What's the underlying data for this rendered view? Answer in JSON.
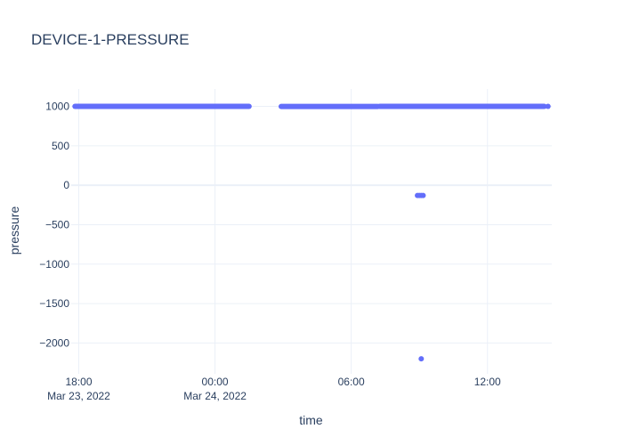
{
  "chart_data": {
    "type": "scatter",
    "title": "DEVICE-1-PRESSURE",
    "xlabel": "time",
    "ylabel": "pressure",
    "grid": true,
    "marker_color": "#636efa",
    "x_range": [
      "2022-03-23T17:40",
      "2022-03-24T14:50"
    ],
    "y_range": [
      -2390,
      1220
    ],
    "x_ticks": [
      {
        "value": "2022-03-23T18:00",
        "label": "18:00",
        "sublabel": "Mar 23, 2022"
      },
      {
        "value": "2022-03-24T00:00",
        "label": "00:00",
        "sublabel": "Mar 24, 2022"
      },
      {
        "value": "2022-03-24T06:00",
        "label": "06:00",
        "sublabel": ""
      },
      {
        "value": "2022-03-24T12:00",
        "label": "12:00",
        "sublabel": ""
      }
    ],
    "y_ticks": [
      {
        "value": 1000,
        "label": "1000"
      },
      {
        "value": 500,
        "label": "500"
      },
      {
        "value": 0,
        "label": "0"
      },
      {
        "value": -500,
        "label": "−500"
      },
      {
        "value": -1000,
        "label": "−1000"
      },
      {
        "value": -1500,
        "label": "−1500"
      },
      {
        "value": -2000,
        "label": "−2000"
      }
    ],
    "series": [
      {
        "segments": [
          {
            "start": "2022-03-23T17:50",
            "end": "2022-03-24T01:30",
            "value": 1000
          },
          {
            "start": "2022-03-24T02:55",
            "end": "2022-03-24T07:10",
            "value": 998
          },
          {
            "start": "2022-03-24T07:15",
            "end": "2022-03-24T14:30",
            "value": 1000
          }
        ],
        "points": [
          {
            "x": "2022-03-24T14:40",
            "y": 1000
          },
          {
            "x": "2022-03-24T08:55",
            "y": -130
          },
          {
            "x": "2022-03-24T09:00",
            "y": -130
          },
          {
            "x": "2022-03-24T09:05",
            "y": -130
          },
          {
            "x": "2022-03-24T09:10",
            "y": -130
          },
          {
            "x": "2022-03-24T09:05",
            "y": -2200
          }
        ]
      }
    ]
  }
}
